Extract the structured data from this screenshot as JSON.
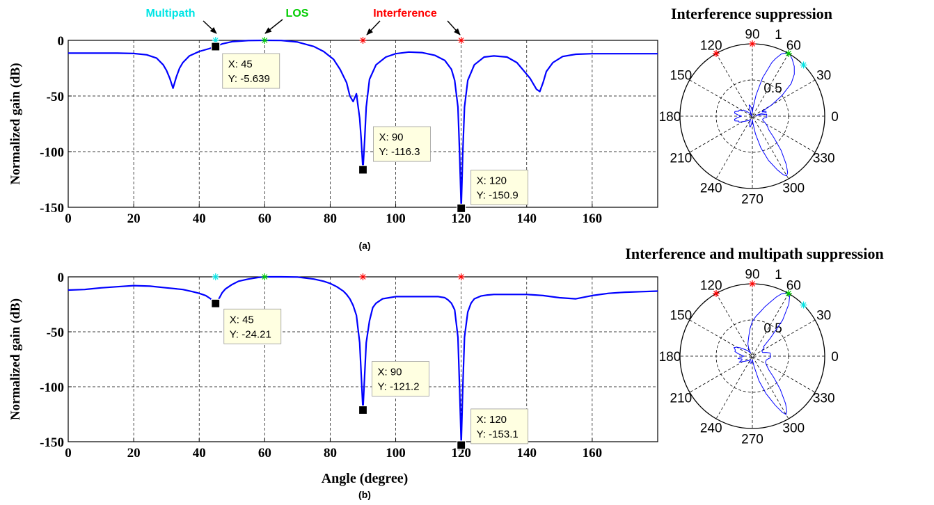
{
  "colors": {
    "curve": "#0000ff",
    "los": "#00cc00",
    "multipath": "#00e5e5",
    "interference": "#ff0000",
    "datatip_bg": "#ffffe1",
    "grid": "#000000"
  },
  "annotations": {
    "multipath": "Multipath",
    "los": "LOS",
    "interference": "Interference"
  },
  "chart_data": [
    {
      "id": "a",
      "type": "line",
      "caption": "(a)",
      "xlabel": "",
      "ylabel": "Normalized gain (dB)",
      "xlim": [
        0,
        180
      ],
      "ylim": [
        -150,
        0
      ],
      "xticks": [
        0,
        20,
        40,
        60,
        80,
        100,
        120,
        140,
        160
      ],
      "yticks": [
        0,
        -50,
        -100,
        -150
      ],
      "grid": true,
      "series": [
        {
          "x": [
            0,
            5,
            10,
            15,
            20,
            24,
            27,
            29,
            30,
            31,
            32,
            33,
            34,
            35,
            37,
            40,
            43,
            45,
            47,
            50,
            55,
            60,
            65,
            70,
            75,
            78,
            81,
            83,
            85,
            86,
            87,
            88,
            89,
            89.5,
            90,
            90.5,
            91,
            92,
            94,
            97,
            100,
            104,
            108,
            112,
            115,
            117,
            118,
            119,
            119.5,
            120,
            120.5,
            121,
            122,
            124,
            127,
            130,
            134,
            137,
            139,
            141,
            142,
            143,
            144,
            145,
            146,
            148,
            151,
            155,
            160,
            165,
            170,
            175,
            180
          ],
          "y": [
            -11.5,
            -11.5,
            -11.5,
            -11.5,
            -11.8,
            -13,
            -16,
            -22,
            -27,
            -34,
            -43,
            -33,
            -25,
            -20,
            -14,
            -10,
            -7.5,
            -5.6,
            -3.2,
            -1.2,
            -0.2,
            0,
            -0.1,
            -1.5,
            -5.5,
            -10,
            -17,
            -26,
            -38,
            -50,
            -55,
            -48,
            -70,
            -90,
            -116.3,
            -90,
            -60,
            -35,
            -22,
            -15,
            -12,
            -10.5,
            -11,
            -13.5,
            -18,
            -26,
            -36,
            -60,
            -100,
            -150.9,
            -100,
            -60,
            -36,
            -22,
            -15,
            -14,
            -15,
            -20,
            -27,
            -34,
            -39,
            -44,
            -46,
            -38,
            -28,
            -20,
            -14.5,
            -12.5,
            -12,
            -12,
            -12,
            -12,
            -12
          ]
        }
      ],
      "markers": [
        {
          "x": 45,
          "y": 0,
          "kind": "multipath"
        },
        {
          "x": 60,
          "y": 0,
          "kind": "los"
        },
        {
          "x": 90,
          "y": 0,
          "kind": "interference"
        },
        {
          "x": 120,
          "y": 0,
          "kind": "interference"
        }
      ],
      "datatips": [
        {
          "x": 45,
          "y": -5.639,
          "line1": "X: 45",
          "line2": "Y: -5.639"
        },
        {
          "x": 90,
          "y": -116.3,
          "line1": "X: 90",
          "line2": "Y: -116.3"
        },
        {
          "x": 120,
          "y": -150.9,
          "line1": "X: 120",
          "line2": "Y: -150.9"
        }
      ]
    },
    {
      "id": "b",
      "type": "line",
      "caption": "(b)",
      "xlabel": "Angle (degree)",
      "ylabel": "Normalized gain (dB)",
      "xlim": [
        0,
        180
      ],
      "ylim": [
        -150,
        0
      ],
      "xticks": [
        0,
        20,
        40,
        60,
        80,
        100,
        120,
        140,
        160
      ],
      "yticks": [
        0,
        -50,
        -100,
        -150
      ],
      "grid": true,
      "series": [
        {
          "x": [
            0,
            5,
            10,
            15,
            20,
            25,
            30,
            35,
            38,
            40,
            42,
            43,
            44,
            45,
            46,
            47,
            48,
            50,
            52,
            55,
            58,
            60,
            63,
            65,
            70,
            75,
            78,
            80,
            82,
            84,
            85,
            86,
            87,
            88,
            89,
            89.5,
            90,
            90.5,
            91,
            92,
            93,
            94,
            96,
            98,
            100,
            105,
            110,
            113,
            115,
            116,
            117,
            118,
            119,
            119.5,
            120,
            120.5,
            121,
            122,
            123,
            124,
            126,
            128,
            130,
            135,
            140,
            145,
            150,
            155,
            160,
            165,
            170,
            175,
            180
          ],
          "y": [
            -12,
            -11.5,
            -10,
            -9,
            -8,
            -8.5,
            -10,
            -11.5,
            -13.5,
            -15,
            -17,
            -19,
            -21,
            -24.2,
            -20,
            -14.5,
            -11,
            -7,
            -4,
            -2,
            -0.6,
            0,
            0,
            0,
            -0.2,
            -2,
            -4,
            -6,
            -9,
            -13,
            -16,
            -20,
            -26,
            -35,
            -60,
            -90,
            -121.2,
            -90,
            -60,
            -40,
            -28,
            -24,
            -20,
            -19,
            -18,
            -18,
            -18,
            -18,
            -19,
            -21,
            -24,
            -30,
            -55,
            -100,
            -153.1,
            -100,
            -55,
            -32,
            -24,
            -20,
            -17.5,
            -16.5,
            -16,
            -16,
            -16,
            -17,
            -19,
            -20,
            -17,
            -15,
            -14,
            -13.5,
            -13
          ]
        }
      ],
      "markers": [
        {
          "x": 45,
          "y": 0,
          "kind": "multipath"
        },
        {
          "x": 60,
          "y": 0,
          "kind": "los"
        },
        {
          "x": 90,
          "y": 0,
          "kind": "interference"
        },
        {
          "x": 120,
          "y": 0,
          "kind": "interference"
        }
      ],
      "datatips": [
        {
          "x": 45,
          "y": -24.21,
          "line1": "X: 45",
          "line2": "Y: -24.21"
        },
        {
          "x": 90,
          "y": -121.2,
          "line1": "X: 90",
          "line2": "Y: -121.2"
        },
        {
          "x": 120,
          "y": -153.1,
          "line1": "X: 120",
          "line2": "Y: -153.1"
        }
      ]
    },
    {
      "id": "polar-a",
      "type": "line",
      "projection": "polar",
      "title": "Interference suppression",
      "rlim": [
        0,
        1
      ],
      "rticks": [
        "0.5",
        "1"
      ],
      "angle_labels": [
        "0",
        "30",
        "60",
        "90",
        "120",
        "150",
        "180",
        "210",
        "240",
        "270",
        "300",
        "330"
      ],
      "grid": true,
      "series": [
        {
          "theta": [
            0,
            8,
            12,
            16,
            20,
            24,
            26,
            30,
            35,
            40,
            45,
            50,
            55,
            58,
            60,
            62,
            65,
            68,
            70,
            75,
            80,
            85,
            90,
            95,
            100,
            104,
            106,
            110,
            115,
            120,
            130,
            140,
            145,
            150,
            155,
            160,
            165,
            170,
            175,
            180,
            185,
            190,
            195,
            200,
            205,
            210,
            215,
            220,
            230,
            240,
            250,
            255,
            260,
            265,
            270,
            275,
            280,
            285,
            290,
            295,
            298,
            300,
            302,
            305,
            310,
            315,
            320,
            322,
            325,
            330,
            335,
            340,
            345,
            350,
            355,
            360
          ],
          "r": [
            0.2,
            0.2,
            0.05,
            0.2,
            0.2,
            0.15,
            0.15,
            0.3,
            0.5,
            0.7,
            0.82,
            0.9,
            0.96,
            0.99,
            1.0,
            0.99,
            0.95,
            0.86,
            0.79,
            0.55,
            0.3,
            0.12,
            0.05,
            0.1,
            0.14,
            0.16,
            0.16,
            0.12,
            0.05,
            0.0,
            0.05,
            0.1,
            0.15,
            0.15,
            0.2,
            0.2,
            0.25,
            0.25,
            0.2,
            0.15,
            0.2,
            0.25,
            0.25,
            0.2,
            0.2,
            0.15,
            0.12,
            0.1,
            0.08,
            0.05,
            0.1,
            0.15,
            0.15,
            0.1,
            0.05,
            0.1,
            0.25,
            0.45,
            0.65,
            0.82,
            0.92,
            0.95,
            0.92,
            0.82,
            0.62,
            0.42,
            0.3,
            0.28,
            0.26,
            0.22,
            0.18,
            0.15,
            0.15,
            0.16,
            0.2,
            0.2
          ]
        }
      ],
      "markers": [
        {
          "theta": 45,
          "r": 1,
          "kind": "multipath"
        },
        {
          "theta": 60,
          "r": 1,
          "kind": "los"
        },
        {
          "theta": 90,
          "r": 1,
          "kind": "interference"
        },
        {
          "theta": 120,
          "r": 1,
          "kind": "interference"
        }
      ]
    },
    {
      "id": "polar-b",
      "type": "line",
      "projection": "polar",
      "title": "Interference and multipath suppression",
      "rlim": [
        0,
        1
      ],
      "rticks": [
        "0.5",
        "1"
      ],
      "angle_labels": [
        "0",
        "30",
        "60",
        "90",
        "120",
        "150",
        "180",
        "210",
        "240",
        "270",
        "300",
        "330"
      ],
      "grid": true,
      "series": [
        {
          "theta": [
            0,
            10,
            15,
            20,
            25,
            30,
            35,
            40,
            45,
            50,
            55,
            58,
            60,
            62,
            65,
            68,
            72,
            76,
            80,
            85,
            90,
            95,
            100,
            105,
            110,
            115,
            120,
            130,
            140,
            145,
            150,
            155,
            160,
            165,
            170,
            175,
            180,
            185,
            190,
            195,
            200,
            205,
            210,
            215,
            220,
            230,
            240,
            250,
            260,
            270,
            280,
            285,
            290,
            295,
            298,
            300,
            302,
            305,
            310,
            315,
            320,
            325,
            330,
            335,
            340,
            345,
            350,
            355,
            360
          ],
          "r": [
            0.25,
            0.25,
            0.2,
            0.15,
            0.15,
            0.15,
            0.2,
            0.2,
            0.35,
            0.65,
            0.88,
            0.97,
            1.0,
            0.99,
            0.95,
            0.88,
            0.78,
            0.7,
            0.62,
            0.55,
            0.48,
            0.38,
            0.28,
            0.22,
            0.18,
            0.12,
            0.05,
            0.1,
            0.15,
            0.2,
            0.25,
            0.28,
            0.25,
            0.25,
            0.2,
            0.15,
            0.12,
            0.15,
            0.2,
            0.15,
            0.15,
            0.2,
            0.15,
            0.12,
            0.1,
            0.08,
            0.05,
            0.1,
            0.1,
            0.05,
            0.15,
            0.35,
            0.55,
            0.75,
            0.88,
            0.93,
            0.9,
            0.8,
            0.6,
            0.42,
            0.3,
            0.25,
            0.22,
            0.2,
            0.2,
            0.2,
            0.22,
            0.25,
            0.25
          ]
        }
      ],
      "markers": [
        {
          "theta": 45,
          "r": 1,
          "kind": "multipath"
        },
        {
          "theta": 60,
          "r": 1,
          "kind": "los"
        },
        {
          "theta": 90,
          "r": 1,
          "kind": "interference"
        },
        {
          "theta": 120,
          "r": 1,
          "kind": "interference"
        }
      ]
    }
  ]
}
